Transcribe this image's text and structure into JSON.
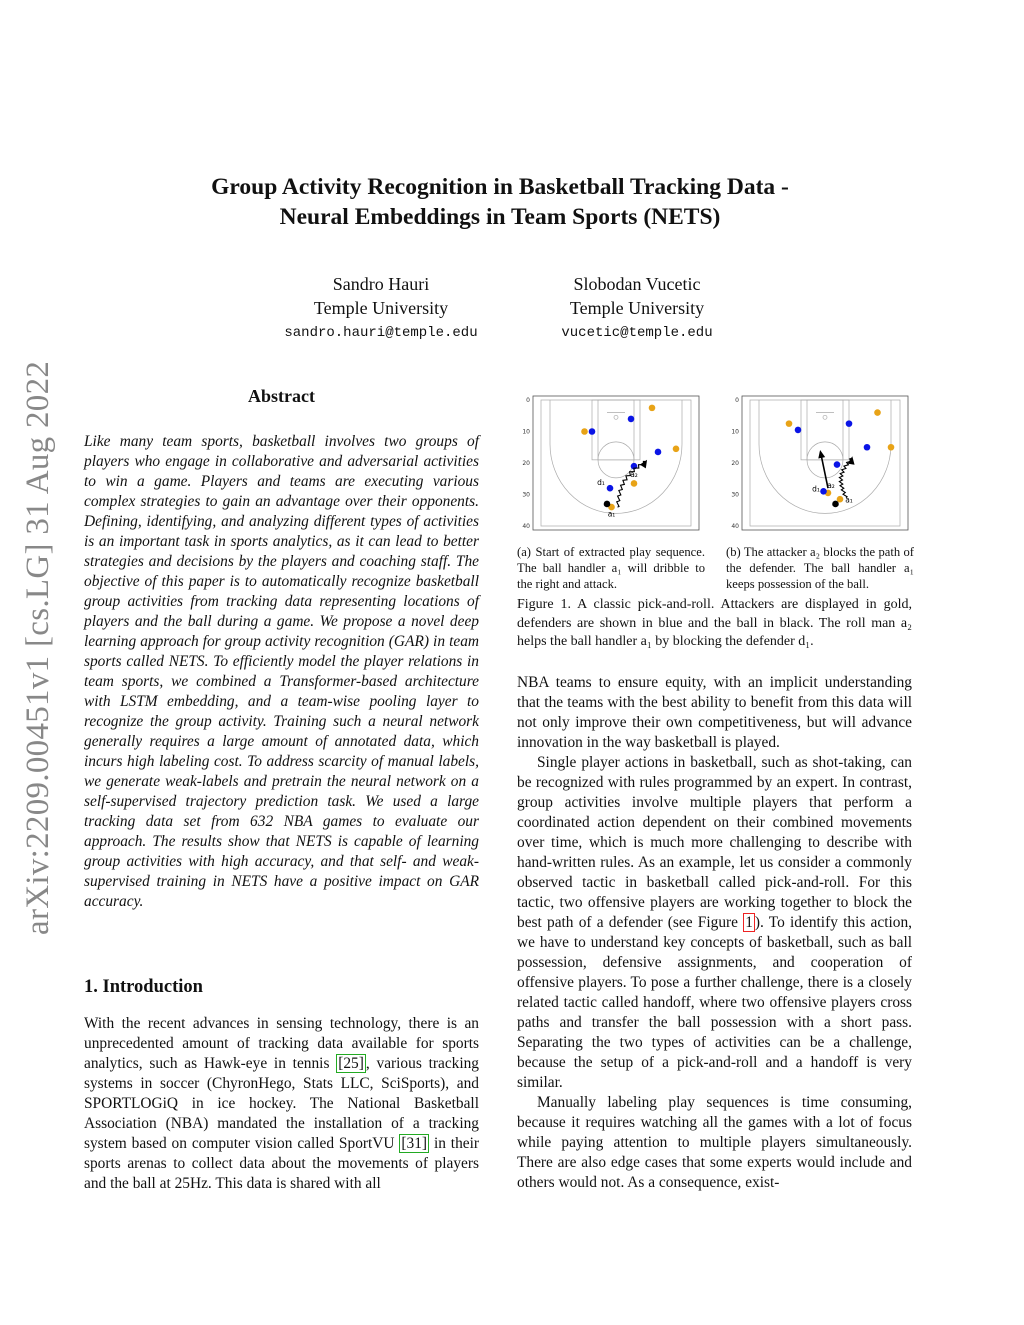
{
  "title_lines": [
    "Group Activity Recognition in Basketball Tracking Data -",
    "Neural Embeddings in Team Sports (NETS)"
  ],
  "authors": [
    {
      "name": "Sandro Hauri",
      "affiliation": "Temple University",
      "email": "sandro.hauri@temple.edu"
    },
    {
      "name": "Slobodan Vucetic",
      "affiliation": "Temple University",
      "email": "vucetic@temple.edu"
    }
  ],
  "arxiv_stamp": "arXiv:2209.00451v1  [cs.LG]  31 Aug 2022",
  "abstract": {
    "heading": "Abstract",
    "text": "Like many team sports, basketball involves two groups of players who engage in collaborative and adversarial activities to win a game. Players and teams are executing various complex strategies to gain an advantage over their opponents. Defining, identifying, and analyzing different types of activities is an important task in sports analytics, as it can lead to better strategies and decisions by the players and coaching staff. The objective of this paper is to automatically recognize basketball group activities from tracking data representing locations of players and the ball during a game. We propose a novel deep learning approach for group activity recognition (GAR) in team sports called NETS. To efficiently model the player relations in team sports, we combined a Transformer-based architecture with LSTM embedding, and a team-wise pooling layer to recognize the group activity. Training such a neural network generally requires a large amount of annotated data, which incurs high labeling cost. To address scarcity of manual labels, we generate weak-labels and pretrain the neural network on a self-supervised trajectory prediction task. We used a large tracking data set from 632 NBA games to evaluate our approach. The results show that NETS is capable of learning group activities with high accuracy, and that self- and weak-supervised training in NETS have a positive impact on GAR accuracy."
  },
  "introduction": {
    "heading": "1. Introduction",
    "p1_a": "With the recent advances in sensing technology, there is an unprecedented amount of tracking data available for sports analytics, such as Hawk-eye in tennis ",
    "ref1": "[25]",
    "p1_b": ", various tracking systems in soccer (ChyronHego, Stats LLC, SciSports), and SPORTLOGiQ in ice hockey. The National Basketball Association (NBA) mandated the installation of a tracking system based on computer vision called SportVU ",
    "ref2": "[31]",
    "p1_c": " in their sports arenas to collect data about the movements of players and the ball at 25Hz. This data is shared with all"
  },
  "right_column": {
    "p1": "NBA teams to ensure equity, with an implicit understanding that the teams with the best ability to benefit from this data will not only improve their own competitiveness, but will advance innovation in the way basketball is played.",
    "p2_a": "Single player actions in basketball, such as shot-taking, can be recognized with rules programmed by an expert. In contrast, group activities involve multiple players that perform a coordinated action dependent on their combined movements over time, which is much more challenging to describe with hand-written rules. As an example, let us consider a commonly observed tactic in basketball called pick-and-roll. For this tactic, two offensive players are working together to block the best path of a defender (see Figure ",
    "fig_ref": "1",
    "p2_b": "). To identify this action, we have to understand key concepts of basketball, such as ball possession, defensive assignments, and cooperation of offensive players. To pose a further challenge, there is a closely related tactic called handoff, where two offensive players cross paths and transfer the ball possession with a short pass. Separating the two types of activities can be a challenge, because the setup of a pick-and-roll and a handoff is very similar.",
    "p3": "Manually labeling play sequences is time consuming, because it requires watching all the games with a lot of focus while paying attention to multiple players simultaneously. There are also edge cases that some experts would include and others would not. As a consequence, exist-"
  },
  "figure": {
    "caption": "Figure 1. A classic pick-and-roll. Attackers are displayed in gold, defenders are shown in blue and the ball in black. The roll man a₂ helps the ball handler a₁ by blocking the defender d₁.",
    "subcaption_a": "(a) Start of extracted play sequence. The ball handler a₁ will dribble to the right and attack.",
    "subcaption_b": "(b) The attacker a₂ blocks the path of the defender. The ball handler a₁ keeps possession of the ball.",
    "colors": {
      "attacker": "#e8a317",
      "defender": "#0a14e6",
      "ball": "#000000"
    }
  },
  "chart_data": [
    {
      "type": "scatter",
      "xlim": [
        0,
        50
      ],
      "ylim": [
        40,
        0
      ],
      "xticks": [
        "0",
        "10",
        "20",
        "30",
        "40",
        "50"
      ],
      "yticks": [
        "0",
        "10",
        "20",
        "30",
        "40"
      ],
      "attackers": [
        [
          37,
          2.5
        ],
        [
          14.5,
          10
        ],
        [
          45,
          15.5
        ],
        [
          31,
          26.5
        ],
        [
          23.5,
          34
        ]
      ],
      "defenders": [
        [
          30,
          6
        ],
        [
          17,
          10
        ],
        [
          39,
          16.5
        ],
        [
          31,
          21
        ],
        [
          23,
          28
        ]
      ],
      "ball": [
        [
          22,
          33
        ]
      ],
      "labels": [
        {
          "text": "d₁",
          "x": 20,
          "y": 27
        },
        {
          "text": "a₂",
          "x": 31,
          "y": 24.5
        },
        {
          "text": "a₁",
          "x": 23.5,
          "y": 37
        }
      ],
      "arrows": [
        {
          "style": "wavy",
          "from": [
            25.5,
            34
          ],
          "to": [
            35,
            19.5
          ]
        }
      ]
    },
    {
      "type": "scatter",
      "xlim": [
        0,
        50
      ],
      "ylim": [
        40,
        0
      ],
      "xticks": [
        "0",
        "10",
        "20",
        "30",
        "40",
        "50"
      ],
      "yticks": [
        "0",
        "10",
        "20",
        "30",
        "40"
      ],
      "attackers": [
        [
          13,
          7.5
        ],
        [
          42.5,
          4
        ],
        [
          47,
          15
        ],
        [
          26,
          29.5
        ],
        [
          30,
          31.5
        ]
      ],
      "defenders": [
        [
          16,
          9.5
        ],
        [
          33,
          7.5
        ],
        [
          39,
          15
        ],
        [
          29,
          20.5
        ],
        [
          24.5,
          29
        ]
      ],
      "ball": [
        [
          28.5,
          33
        ]
      ],
      "labels": [
        {
          "text": "d₁",
          "x": 22,
          "y": 29
        },
        {
          "text": "a₂",
          "x": 27,
          "y": 28
        },
        {
          "text": "a₁",
          "x": 33,
          "y": 32.5
        }
      ],
      "arrows": [
        {
          "style": "straight",
          "from": [
            26,
            28
          ],
          "to": [
            23.5,
            16.5
          ]
        },
        {
          "style": "wavy",
          "from": [
            32,
            31
          ],
          "to": [
            34,
            18.5
          ]
        }
      ]
    }
  ]
}
